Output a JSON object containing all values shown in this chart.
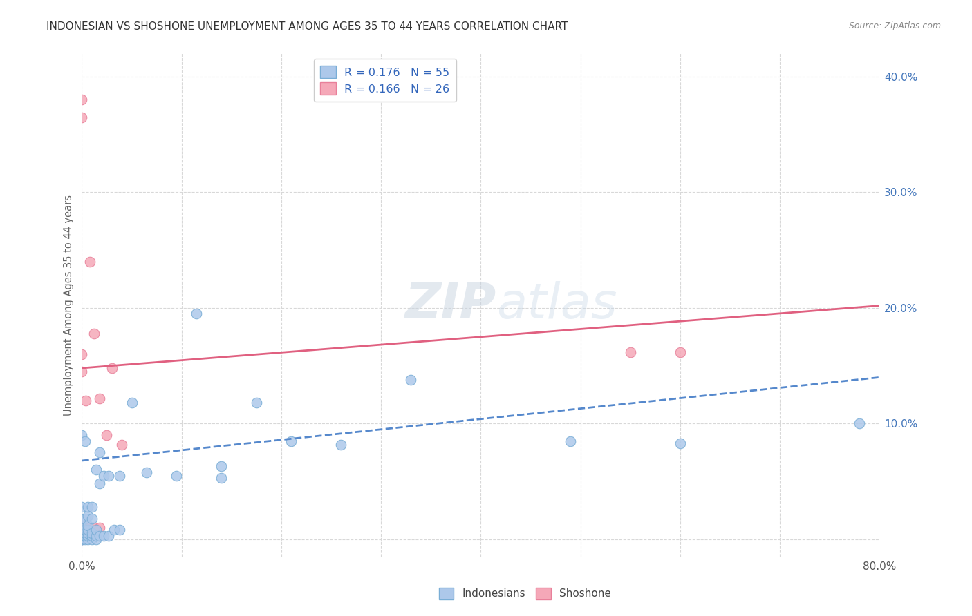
{
  "title": "INDONESIAN VS SHOSHONE UNEMPLOYMENT AMONG AGES 35 TO 44 YEARS CORRELATION CHART",
  "source": "Source: ZipAtlas.com",
  "ylabel": "Unemployment Among Ages 35 to 44 years",
  "bg_color": "#ffffff",
  "grid_color": "#d8d8d8",
  "indonesian_color": "#adc8ea",
  "shoshone_color": "#f5a8b8",
  "indonesian_edge_color": "#7aaed6",
  "shoshone_edge_color": "#e8809a",
  "indonesian_line_color": "#5588cc",
  "shoshone_line_color": "#e06080",
  "xlim": [
    0.0,
    0.8
  ],
  "ylim": [
    -0.015,
    0.42
  ],
  "indonesian_x": [
    0.0,
    0.0,
    0.0,
    0.0,
    0.0,
    0.0,
    0.0,
    0.0,
    0.0,
    0.0,
    0.003,
    0.003,
    0.003,
    0.003,
    0.003,
    0.003,
    0.006,
    0.006,
    0.006,
    0.006,
    0.006,
    0.006,
    0.006,
    0.01,
    0.01,
    0.01,
    0.01,
    0.01,
    0.014,
    0.014,
    0.014,
    0.014,
    0.018,
    0.018,
    0.018,
    0.022,
    0.022,
    0.027,
    0.027,
    0.032,
    0.038,
    0.038,
    0.05,
    0.065,
    0.095,
    0.115,
    0.14,
    0.14,
    0.175,
    0.21,
    0.26,
    0.33,
    0.49,
    0.6,
    0.78
  ],
  "indonesian_y": [
    0.0,
    0.0,
    0.0,
    0.003,
    0.005,
    0.008,
    0.01,
    0.018,
    0.028,
    0.09,
    0.0,
    0.003,
    0.005,
    0.008,
    0.018,
    0.085,
    0.0,
    0.003,
    0.005,
    0.008,
    0.012,
    0.02,
    0.028,
    0.0,
    0.003,
    0.005,
    0.018,
    0.028,
    0.0,
    0.003,
    0.008,
    0.06,
    0.003,
    0.048,
    0.075,
    0.003,
    0.055,
    0.003,
    0.055,
    0.008,
    0.008,
    0.055,
    0.118,
    0.058,
    0.055,
    0.195,
    0.053,
    0.063,
    0.118,
    0.085,
    0.082,
    0.138,
    0.085,
    0.083,
    0.1
  ],
  "shoshone_x": [
    0.0,
    0.0,
    0.0,
    0.0,
    0.0,
    0.0,
    0.0,
    0.004,
    0.004,
    0.004,
    0.008,
    0.008,
    0.012,
    0.012,
    0.018,
    0.018,
    0.025,
    0.03,
    0.04,
    0.55,
    0.6
  ],
  "shoshone_y": [
    0.0,
    0.005,
    0.012,
    0.145,
    0.16,
    0.365,
    0.38,
    0.005,
    0.012,
    0.12,
    0.005,
    0.24,
    0.01,
    0.178,
    0.01,
    0.122,
    0.09,
    0.148,
    0.082,
    0.162,
    0.162
  ],
  "indo_line_x0": 0.0,
  "indo_line_y0": 0.068,
  "indo_line_x1": 0.8,
  "indo_line_y1": 0.14,
  "sho_line_x0": 0.0,
  "sho_line_y0": 0.148,
  "sho_line_x1": 0.8,
  "sho_line_y1": 0.202
}
